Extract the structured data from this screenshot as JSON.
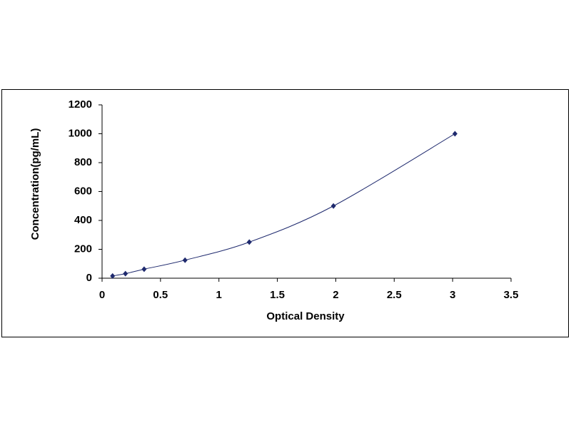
{
  "chart_data": {
    "type": "scatter",
    "x_label": "Optical Density",
    "y_label": "Concentration(pg/mL)",
    "series": [
      {
        "color": "#1f2a6e",
        "marker": "diamond",
        "smooth_line": true,
        "x": [
          0.09,
          0.2,
          0.36,
          0.71,
          1.26,
          1.98,
          3.02
        ],
        "values": [
          15.6,
          31.3,
          62.5,
          125,
          250,
          500,
          1000
        ]
      }
    ],
    "xlim": [
      0,
      3.5
    ],
    "xticks": [
      0,
      0.5,
      1,
      1.5,
      2,
      2.5,
      3,
      3.5
    ],
    "ylim": [
      0,
      1200
    ],
    "yticks": [
      0,
      200,
      400,
      600,
      800,
      1000,
      1200
    ],
    "grid": false
  }
}
